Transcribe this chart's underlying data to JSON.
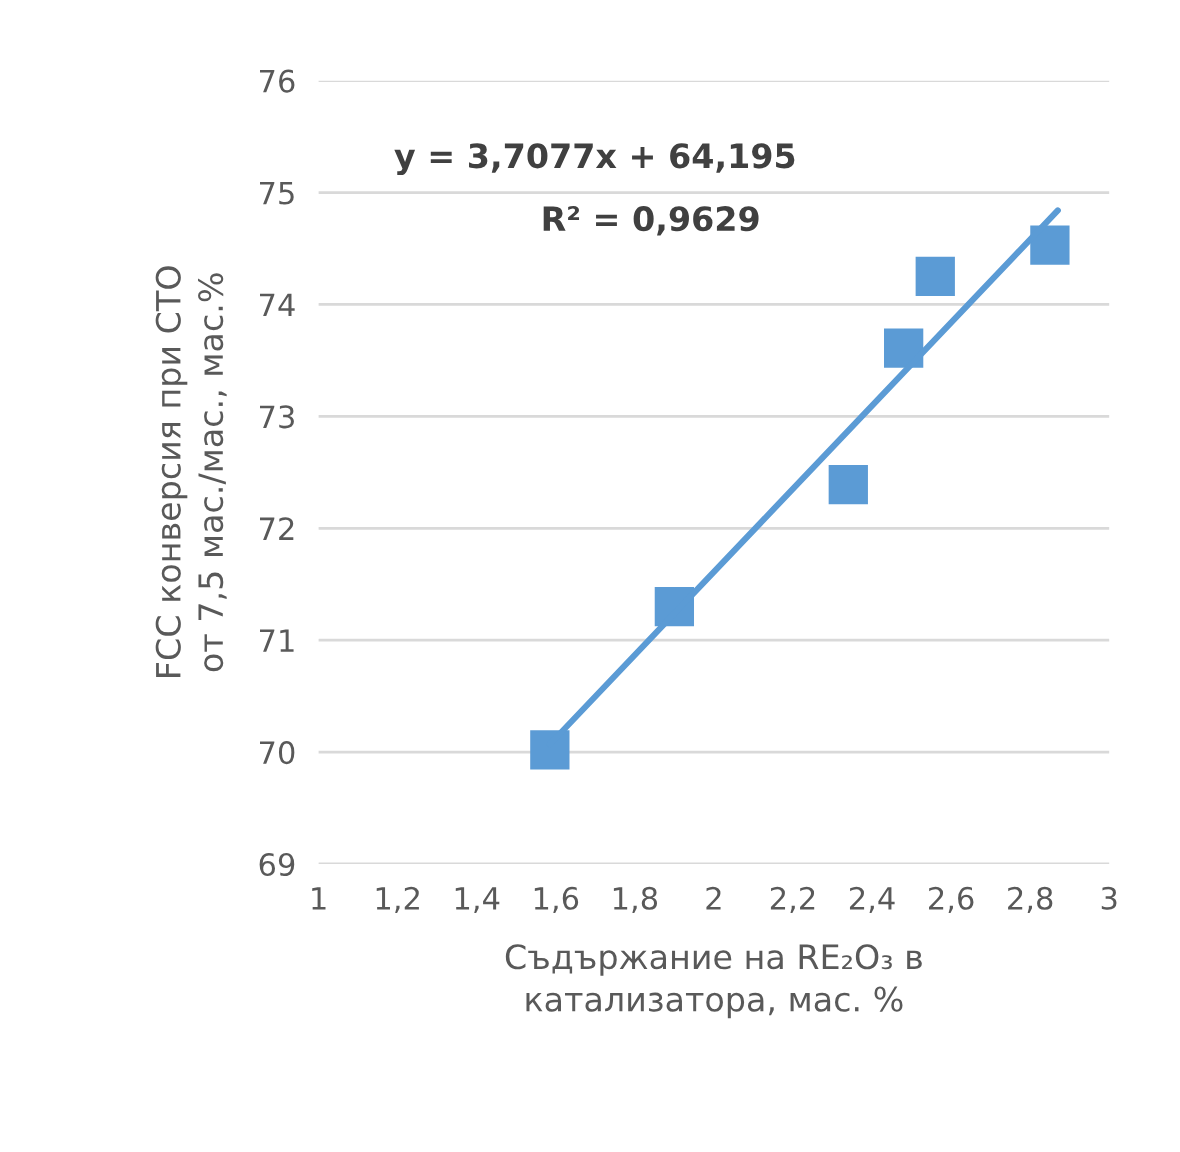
{
  "chart_data": {
    "type": "scatter",
    "xlabel": "Съдържание на RE₂O₃ в катализатора, мас. %",
    "ylabel": "FCC конверсия при СТО от 7,5 мас./мас., мас.%",
    "series": [
      {
        "type": "scatter",
        "color": "#5b9bd5",
        "marker": "square",
        "x": [
          1.585,
          1.9,
          2.34,
          2.48,
          2.56,
          2.85
        ],
        "values": [
          70.02,
          71.3,
          72.39,
          73.61,
          74.25,
          74.53
        ]
      },
      {
        "type": "line",
        "color": "#5b9bd5",
        "marker": "none",
        "line_style": "solid",
        "x": [
          1.585,
          2.87
        ],
        "values": [
          70.07,
          74.84
        ]
      }
    ],
    "annotations": [
      "y = 3,7077x + 64,195",
      "R² = 0,9629"
    ],
    "xlim": [
      1,
      3
    ],
    "ylim": [
      69,
      76
    ],
    "xticks": [
      1,
      {
        "value": 1.2,
        "label": "1,2"
      },
      {
        "value": 1.4,
        "label": "1,4"
      },
      {
        "value": 1.6,
        "label": "1,6"
      },
      {
        "value": 1.8,
        "label": "1,8"
      },
      2,
      {
        "value": 2.2,
        "label": "2,2"
      },
      {
        "value": 2.4,
        "label": "2,4"
      },
      {
        "value": 2.6,
        "label": "2,6"
      },
      {
        "value": 2.8,
        "label": "2,8"
      },
      3
    ],
    "yticks": [
      69,
      70,
      71,
      72,
      73,
      74,
      75,
      76
    ],
    "grid": "y"
  }
}
